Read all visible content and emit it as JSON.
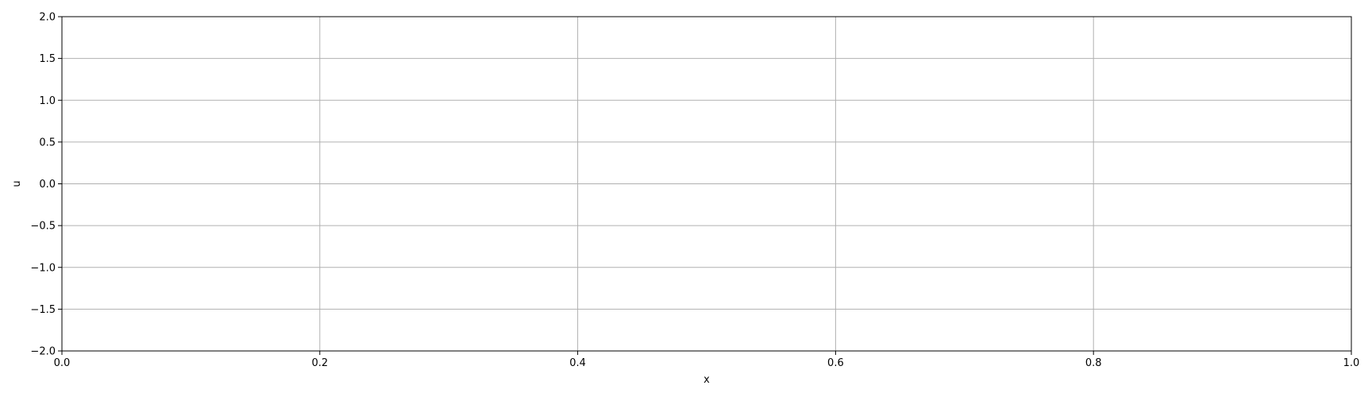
{
  "chart_data": {
    "type": "line",
    "title": "",
    "xlabel": "x",
    "ylabel": "u",
    "xlim": [
      0.0,
      1.0
    ],
    "ylim": [
      -2.0,
      2.0
    ],
    "x_ticks": [
      0.0,
      0.2,
      0.4,
      0.6,
      0.8,
      1.0
    ],
    "y_ticks": [
      2.0,
      1.5,
      1.0,
      0.5,
      0.0,
      -0.5,
      -1.0,
      -1.5,
      -2.0
    ],
    "x_tick_labels": [
      "0.0",
      "0.2",
      "0.4",
      "0.6",
      "0.8",
      "1.0"
    ],
    "y_tick_labels": [
      "2.0",
      "1.5",
      "1.0",
      "0.5",
      "0.0",
      "−0.5",
      "−1.0",
      "−1.5",
      "−2.0"
    ],
    "grid": true,
    "series": []
  },
  "colors": {
    "grid": "#b0b0b0",
    "axes": "#000000",
    "background": "#ffffff"
  }
}
